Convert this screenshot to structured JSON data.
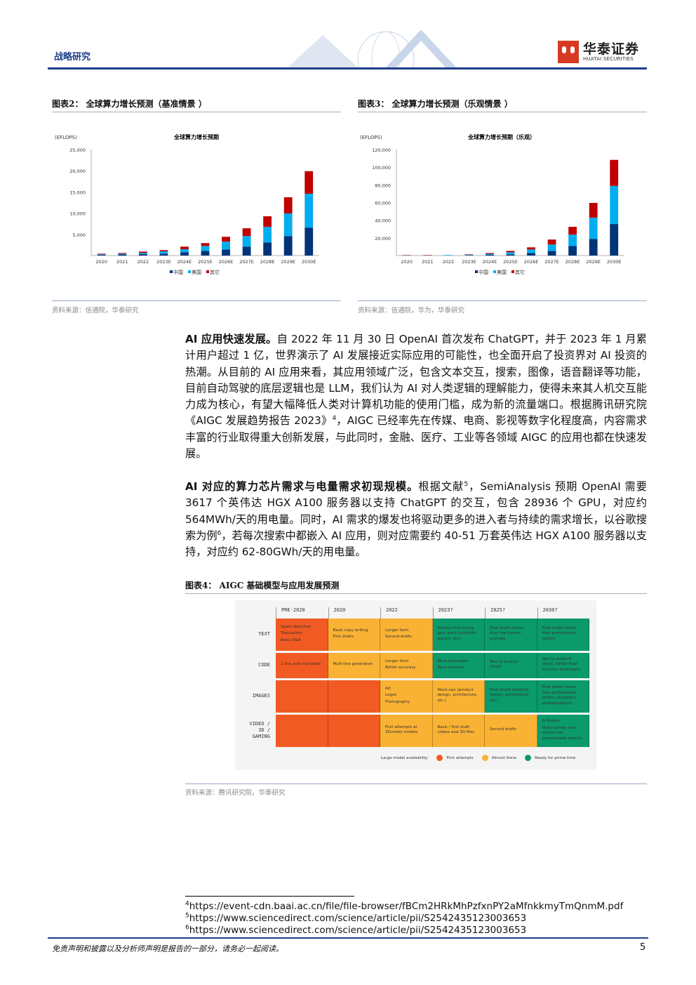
{
  "header": {
    "section": "战略研究",
    "logo_cn": "华泰证券",
    "logo_en": "HUATAI SECURITIES"
  },
  "figures": {
    "fig2": {
      "title": "图表2：  全球算力增长预测（基准情景 ）",
      "source": "资料来源：信通院，华泰研究"
    },
    "fig3": {
      "title": "图表3：  全球算力增长预测（乐观情景 ）",
      "source": "资料来源：信通院，华为，华泰研究"
    },
    "fig4": {
      "title": "图表4：  AIGC 基础模型与应用发展预测",
      "source": "资料来源：腾讯研究院，华泰研究"
    }
  },
  "chart_data": [
    {
      "type": "bar",
      "stacked": true,
      "title": "全球算力增长预期",
      "ylabel": "(EFLOPS)",
      "ylim": [
        0,
        25000
      ],
      "yticks": [
        "25,000",
        "20,000",
        "15,000",
        "10,000",
        "5,000"
      ],
      "ytick_values": [
        25000,
        20000,
        15000,
        10000,
        5000
      ],
      "categories": [
        "2020",
        "2021",
        "2022",
        "2023E",
        "2024E",
        "2025E",
        "2026E",
        "2027E",
        "2028E",
        "2029E",
        "2030E"
      ],
      "series": [
        {
          "name": "中国",
          "color": "#003478",
          "values": [
            150,
            300,
            330,
            450,
            780,
            1110,
            1440,
            2110,
            3100,
            4600,
            6600
          ]
        },
        {
          "name": "美国",
          "color": "#00aeef",
          "values": [
            150,
            150,
            330,
            550,
            720,
            1160,
            1830,
            2490,
            3660,
            5320,
            7980
          ]
        },
        {
          "name": "其它",
          "color": "#c00000",
          "values": [
            140,
            160,
            280,
            280,
            600,
            670,
            1160,
            1830,
            2500,
            3830,
            5320
          ]
        }
      ],
      "legend": "bottom"
    },
    {
      "type": "bar",
      "stacked": true,
      "title": "全球算力增长预期（乐观）",
      "ylabel": "(EFLOPS)",
      "ylim": [
        0,
        120000
      ],
      "yticks": [
        "120,000",
        "100,000",
        "80,000",
        "60,000",
        "40,000",
        "20,000"
      ],
      "ytick_values": [
        120000,
        100000,
        80000,
        60000,
        40000,
        20000
      ],
      "categories": [
        "2020",
        "2021",
        "2022",
        "2023E",
        "2024E",
        "2025E",
        "2026E",
        "2027E",
        "2028E",
        "2029E",
        "2030E"
      ],
      "series": [
        {
          "name": "中国",
          "color": "#003478",
          "values": [
            100,
            100,
            100,
            300,
            800,
            1300,
            2900,
            5300,
            10900,
            18900,
            35700
          ]
        },
        {
          "name": "美国",
          "color": "#00aeef",
          "values": [
            150,
            150,
            500,
            500,
            1100,
            2400,
            4000,
            7200,
            12800,
            23900,
            43100
          ]
        },
        {
          "name": "其它",
          "color": "#c00000",
          "values": [
            300,
            350,
            0,
            500,
            1000,
            1600,
            2400,
            5600,
            8800,
            16800,
            29500
          ]
        }
      ],
      "legend": "bottom"
    }
  ],
  "paragraphs": {
    "p1": [
      "AI 应用快速发展。",
      "自 2022 年 11 月 30 日 OpenAI 首次发布 ChatGPT，并于 2023 年 1 月累计用户超过 1 亿，世界演示了 AI 发展接近实际应用的可能性，也全面开启了投资界对 AI 投资的热潮。从目前的 AI 应用来看，其应用领域广泛，包含文本交互，搜索，图像，语音翻译等功能，目前自动驾驶的底层逻辑也是 LLM，我们认为 AI 对人类逻辑的理解能力，使得未来其人机交互能力成为核心，有望大幅降低人类对计算机功能的使用门槛，成为新的流量端口。根据腾讯研究院《AIGC 发展趋势报告 2023》",
      "4",
      "，AIGC 已经率先在传媒、电商、影视等数字化程度高，内容需求丰富的行业取得重大创新发展，与此同时，金融、医疗、工业等各领域 AIGC 的应用也都在快速发展。"
    ],
    "p2": [
      "AI 对应的算力芯片需求与电量需求初现规模。",
      "根据文献",
      "5",
      "，SemiAnalysis 预期 OpenAI 需要 3617 个英伟达 HGX A100 服务器以支持 ChatGPT 的交互，包含 28936 个 GPU，对应约 564MWh/天的用电量。同时，AI 需求的爆发也将驱动更多的进入者与持续的需求增长，以谷歌搜索为例",
      "6",
      "，若每次搜索中都嵌入 AI 应用，则对应需要约 40-51 万套英伟达 HGX A100 服务器以支持，对应约 62-80GWh/天的用电量。"
    ]
  },
  "aigc": {
    "columns": [
      "PRE-2020",
      "2020",
      "2022",
      "2023?",
      "2025?",
      "2030?"
    ],
    "rows": [
      {
        "label": "TEXT",
        "cells": [
          {
            "s": "first",
            "t": "Spam detection\nTranslation\nBasic Q&A"
          },
          {
            "s": "almost",
            "t": "Basic copy writing\nFirst drafts"
          },
          {
            "s": "almost",
            "t": "Longer form\nSecond drafts"
          },
          {
            "s": "ready",
            "t": "Vertical fine tuning gets good (scientific papers, etc)"
          },
          {
            "s": "ready",
            "t": "Final drafts better than the human average"
          },
          {
            "s": "ready",
            "t": "Final drafts better than professional writers"
          }
        ]
      },
      {
        "label": "CODE",
        "cells": [
          {
            "s": "first",
            "t": "1-line auto-complete"
          },
          {
            "s": "almost",
            "t": "Multi-line generation"
          },
          {
            "s": "almost",
            "t": "Longer form\nBetter accuracy"
          },
          {
            "s": "ready",
            "t": "More languages\nMore verticals"
          },
          {
            "s": "ready",
            "t": "Text to product (draft)"
          },
          {
            "s": "ready",
            "t": "Text to product (final), better than full-time developers"
          }
        ]
      },
      {
        "label": "IMAGES",
        "cells": [
          {
            "s": "first",
            "t": ""
          },
          {
            "s": "first",
            "t": ""
          },
          {
            "s": "almost",
            "t": "Art\nLogos\nPhotography"
          },
          {
            "s": "almost",
            "t": "Mock-ups (product design, architecture, etc.)"
          },
          {
            "s": "ready",
            "t": "Final drafts (product design, architecture, etc.)"
          },
          {
            "s": "ready",
            "t": "Final drafts better than professional artists, designers, photographers)"
          }
        ]
      },
      {
        "label": "VIDEO / 3D / GAMING",
        "cells": [
          {
            "s": "first",
            "t": ""
          },
          {
            "s": "first",
            "t": ""
          },
          {
            "s": "almost",
            "t": "First attempts at 3D/video models"
          },
          {
            "s": "almost",
            "t": "Basic / first draft videos and 3D files"
          },
          {
            "s": "almost",
            "t": "Second drafts"
          },
          {
            "s": "ready",
            "t": "AI Roblox\nVideo games and movies are personalized dreams"
          }
        ]
      }
    ],
    "legend": {
      "label": "Large model availability:",
      "first": "First attempts",
      "almost": "Almost there",
      "ready": "Ready for prime time"
    },
    "colors": {
      "first": "#f15a22",
      "almost": "#f9b233",
      "ready": "#0b9a6a"
    }
  },
  "footnotes": [
    {
      "n": "4",
      "text": "https://event-cdn.baai.ac.cn/file/file-browser/fBCm2HRkMhPzfxnPY2aMfnkkmyTmQnmM.pdf"
    },
    {
      "n": "5",
      "text": "https://www.sciencedirect.com/science/article/pii/S2542435123003653"
    },
    {
      "n": "6",
      "text": "https://www.sciencedirect.com/science/article/pii/S2542435123003653"
    }
  ],
  "footer": {
    "disclaimer": "免责声明和披露以及分析师声明是报告的一部分，请务必一起阅读。",
    "page": "5"
  }
}
